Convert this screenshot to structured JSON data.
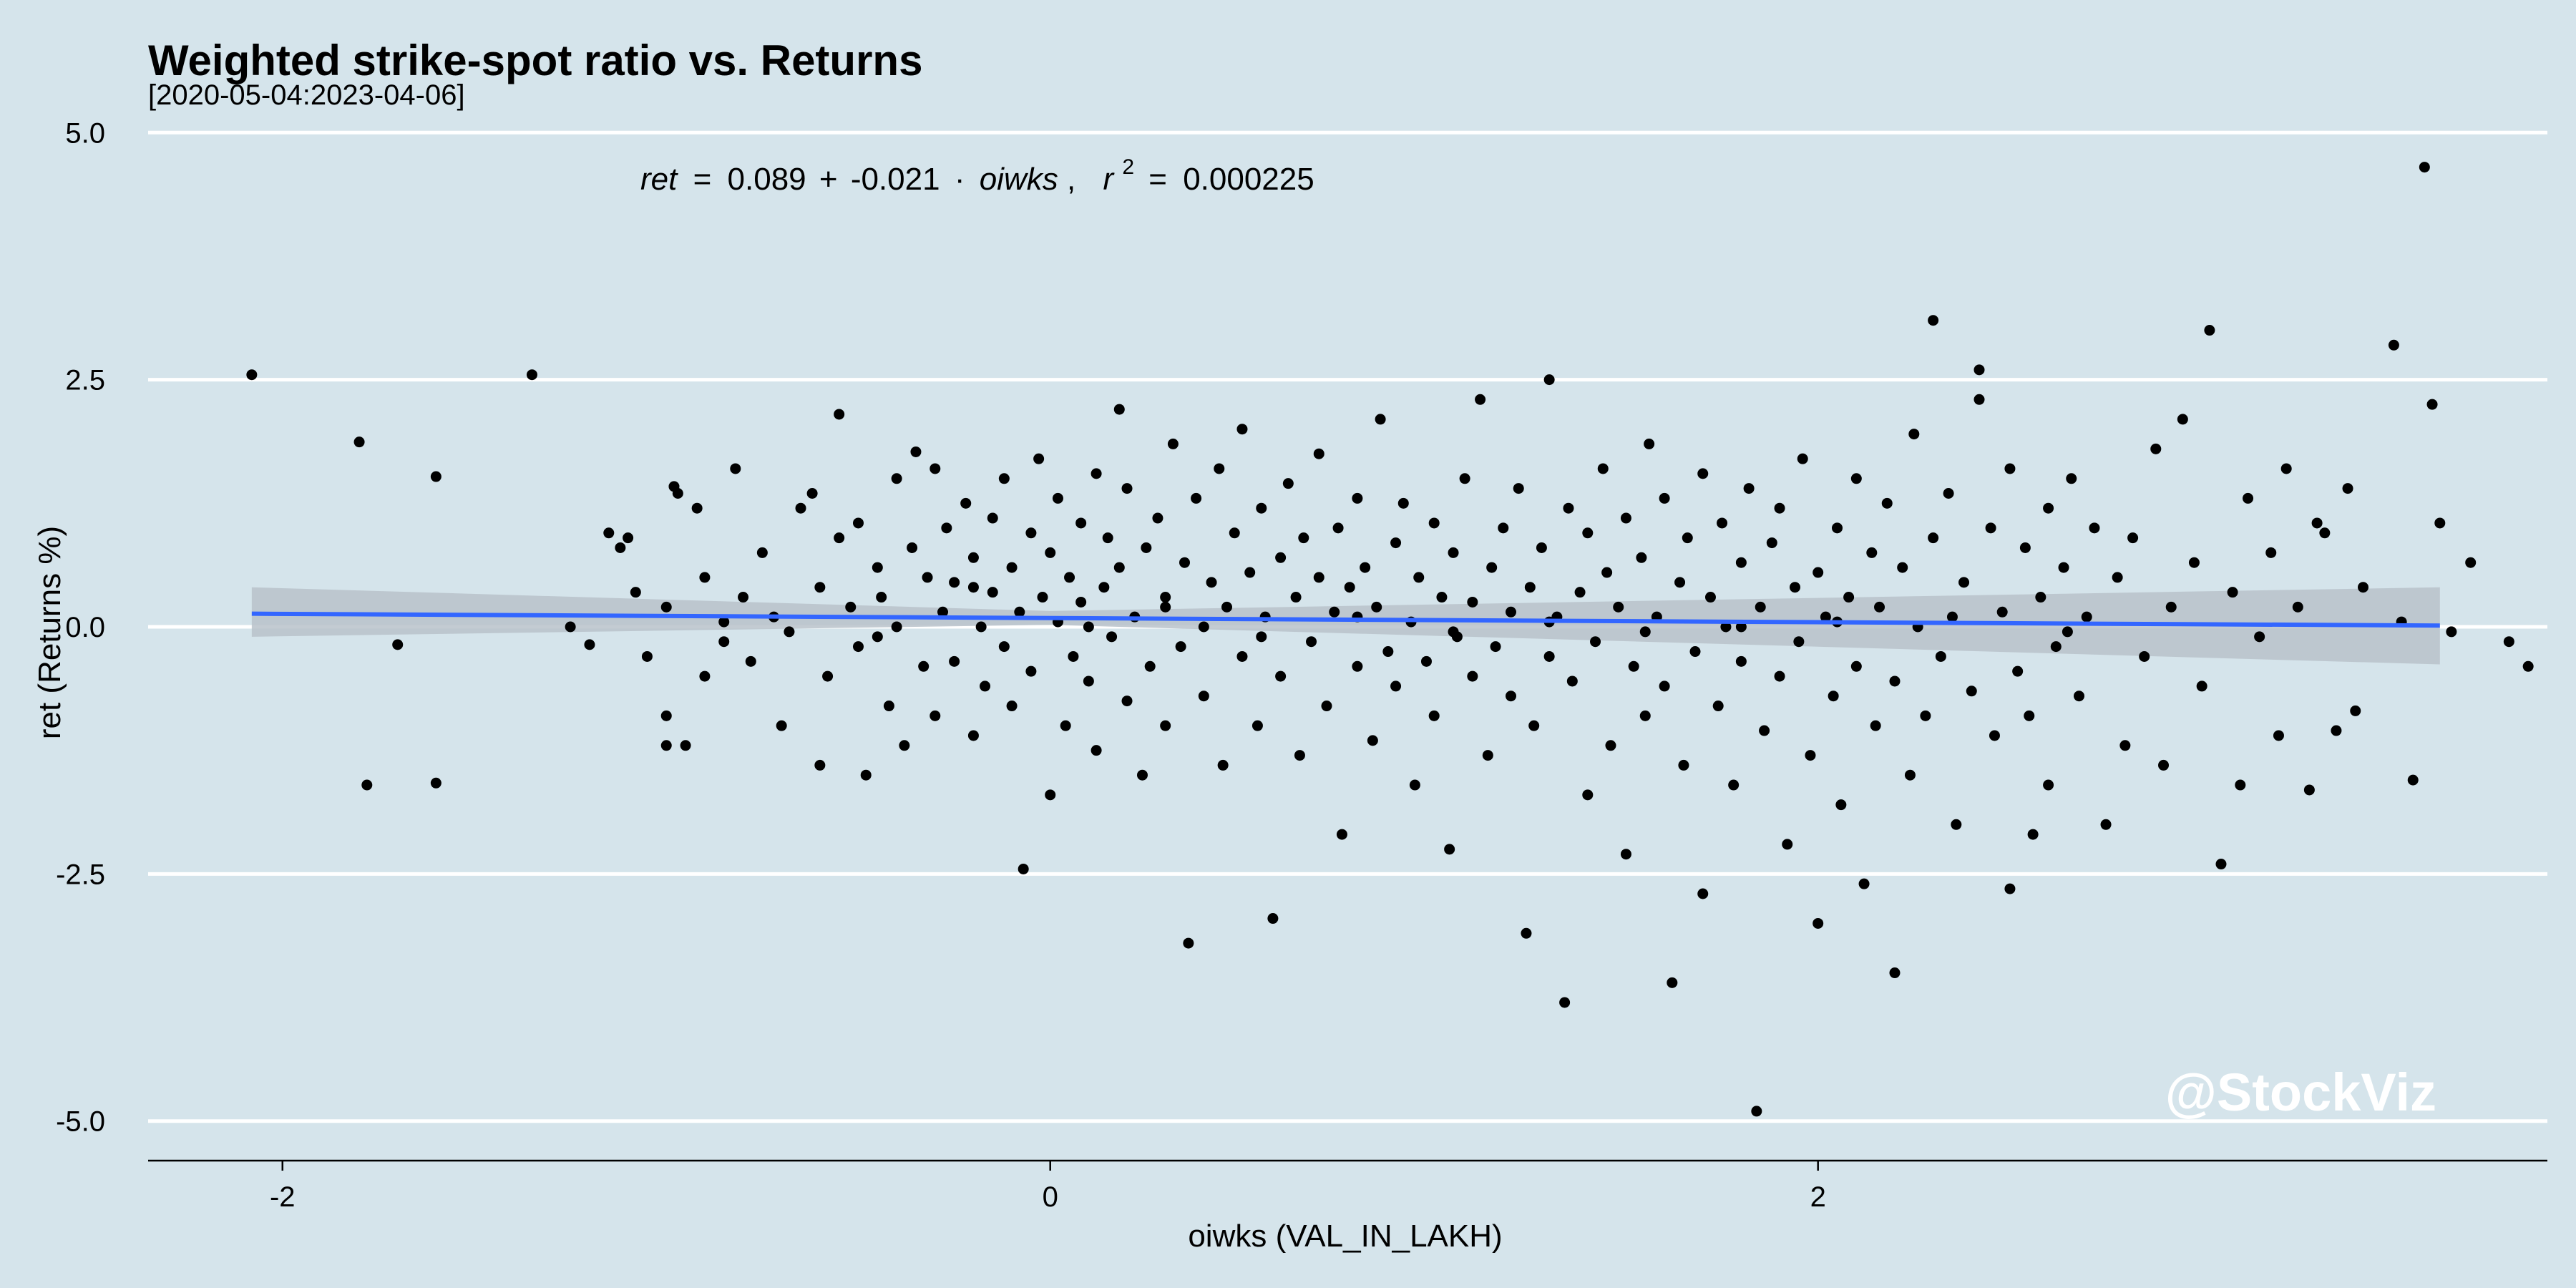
{
  "chart_data": {
    "type": "scatter",
    "title": "Weighted strike-spot ratio vs. Returns",
    "subtitle": "[2020-05-04:2023-04-06]",
    "xlabel": "oiwks (VAL_IN_LAKH)",
    "ylabel": "ret (Returns %)",
    "xlim": [
      -2.35,
      3.9
    ],
    "ylim": [
      -5.4,
      5.4
    ],
    "x_ticks": [
      -2,
      0,
      2
    ],
    "x_tick_labels": [
      "-2",
      "0",
      "2"
    ],
    "y_ticks": [
      5.0,
      2.5,
      0.0,
      -2.5,
      -5.0
    ],
    "y_tick_labels": [
      "5.0",
      "2.5",
      "0.0",
      "-2.5",
      "-5.0"
    ],
    "grid": "horizontal",
    "equation": {
      "lhs": "ret",
      "equals": "=",
      "intercept": "0.089",
      "plus": "+",
      "slope": "-0.021",
      "dot": "·",
      "var": "oiwks",
      "comma": ",",
      "r2_label": "r",
      "r2_exp": "2",
      "r2_equals": "=",
      "r2_value": "0.000225"
    },
    "regression": {
      "intercept": 0.089,
      "slope": -0.021,
      "x_range": [
        -2.08,
        3.62
      ]
    },
    "confidence_band": {
      "x": [
        -2.08,
        0.0,
        3.62
      ],
      "upper": [
        0.4,
        0.16,
        0.4
      ],
      "lower": [
        -0.1,
        0.02,
        -0.38
      ]
    },
    "watermark": "@StockViz",
    "colors": {
      "background": "#d5e4eb",
      "grid": "#ffffff",
      "line": "#3366ff",
      "band": "#b8c2ca",
      "point": "#000000"
    },
    "points": [
      [
        -2.08,
        2.55
      ],
      [
        -1.8,
        1.87
      ],
      [
        -1.7,
        -0.18
      ],
      [
        -1.78,
        -1.6
      ],
      [
        -1.6,
        1.52
      ],
      [
        -1.6,
        -1.58
      ],
      [
        -1.35,
        2.55
      ],
      [
        -1.2,
        -0.18
      ],
      [
        -1.15,
        0.95
      ],
      [
        -1.12,
        0.8
      ],
      [
        -1.1,
        0.9
      ],
      [
        -1.05,
        -0.3
      ],
      [
        -1.0,
        0.2
      ],
      [
        -1.0,
        -1.2
      ],
      [
        -0.95,
        -1.2
      ],
      [
        -1.0,
        -0.9
      ],
      [
        -0.98,
        1.42
      ],
      [
        -0.97,
        1.35
      ],
      [
        -0.92,
        1.2
      ],
      [
        -0.9,
        0.5
      ],
      [
        -0.85,
        0.05
      ],
      [
        -0.85,
        -0.15
      ],
      [
        -0.82,
        1.6
      ],
      [
        -0.8,
        0.3
      ],
      [
        -0.78,
        -0.35
      ],
      [
        -0.75,
        0.75
      ],
      [
        -0.72,
        0.1
      ],
      [
        -0.7,
        -1.0
      ],
      [
        -0.68,
        -0.05
      ],
      [
        -0.65,
        1.2
      ],
      [
        -0.62,
        1.35
      ],
      [
        -0.6,
        0.4
      ],
      [
        -0.58,
        -0.5
      ],
      [
        -0.55,
        2.15
      ],
      [
        -0.55,
        0.9
      ],
      [
        -0.52,
        0.2
      ],
      [
        -0.5,
        -0.2
      ],
      [
        -0.5,
        1.05
      ],
      [
        -0.48,
        -1.5
      ],
      [
        -0.45,
        0.6
      ],
      [
        -0.44,
        0.3
      ],
      [
        -0.42,
        -0.8
      ],
      [
        -0.4,
        1.5
      ],
      [
        -0.4,
        0.0
      ],
      [
        -0.38,
        -1.2
      ],
      [
        -0.36,
        0.8
      ],
      [
        -0.35,
        1.77
      ],
      [
        -0.33,
        -0.4
      ],
      [
        -0.32,
        0.5
      ],
      [
        -0.3,
        1.6
      ],
      [
        -0.3,
        -0.9
      ],
      [
        -0.28,
        0.15
      ],
      [
        -0.27,
        1.0
      ],
      [
        -0.25,
        0.45
      ],
      [
        -0.25,
        -0.35
      ],
      [
        -0.22,
        1.25
      ],
      [
        -0.2,
        -1.1
      ],
      [
        -0.2,
        0.7
      ],
      [
        -0.18,
        0.0
      ],
      [
        -0.17,
        -0.6
      ],
      [
        -0.15,
        1.1
      ],
      [
        -0.15,
        0.35
      ],
      [
        -0.12,
        -0.2
      ],
      [
        -0.12,
        1.5
      ],
      [
        -0.1,
        -0.8
      ],
      [
        -0.1,
        0.6
      ],
      [
        -0.08,
        0.15
      ],
      [
        -0.07,
        -2.45
      ],
      [
        -0.05,
        0.95
      ],
      [
        -0.05,
        -0.45
      ],
      [
        -0.03,
        1.7
      ],
      [
        -0.02,
        0.3
      ],
      [
        0.0,
        -1.7
      ],
      [
        0.0,
        0.75
      ],
      [
        0.02,
        1.3
      ],
      [
        0.02,
        0.05
      ],
      [
        0.04,
        -1.0
      ],
      [
        0.05,
        0.5
      ],
      [
        0.06,
        -0.3
      ],
      [
        0.08,
        1.05
      ],
      [
        0.08,
        0.25
      ],
      [
        0.1,
        -0.55
      ],
      [
        0.12,
        1.55
      ],
      [
        0.12,
        -1.25
      ],
      [
        0.14,
        0.4
      ],
      [
        0.15,
        0.9
      ],
      [
        0.16,
        -0.1
      ],
      [
        0.18,
        2.2
      ],
      [
        0.18,
        0.6
      ],
      [
        0.2,
        -0.75
      ],
      [
        0.2,
        1.4
      ],
      [
        0.22,
        0.1
      ],
      [
        0.24,
        -1.5
      ],
      [
        0.25,
        0.8
      ],
      [
        0.26,
        -0.4
      ],
      [
        0.28,
        1.1
      ],
      [
        0.3,
        0.3
      ],
      [
        0.3,
        -1.0
      ],
      [
        0.32,
        1.85
      ],
      [
        0.34,
        -0.2
      ],
      [
        0.35,
        0.65
      ],
      [
        0.36,
        -3.2
      ],
      [
        0.38,
        1.3
      ],
      [
        0.4,
        0.0
      ],
      [
        0.4,
        -0.7
      ],
      [
        0.42,
        0.45
      ],
      [
        0.44,
        1.6
      ],
      [
        0.45,
        -1.4
      ],
      [
        0.46,
        0.2
      ],
      [
        0.48,
        0.95
      ],
      [
        0.5,
        -0.3
      ],
      [
        0.5,
        2.0
      ],
      [
        0.52,
        0.55
      ],
      [
        0.54,
        -1.0
      ],
      [
        0.55,
        1.2
      ],
      [
        0.56,
        0.1
      ],
      [
        0.58,
        -2.95
      ],
      [
        0.6,
        0.7
      ],
      [
        0.6,
        -0.5
      ],
      [
        0.62,
        1.45
      ],
      [
        0.64,
        0.3
      ],
      [
        0.65,
        -1.3
      ],
      [
        0.66,
        0.9
      ],
      [
        0.68,
        -0.15
      ],
      [
        0.7,
        1.75
      ],
      [
        0.7,
        0.5
      ],
      [
        0.72,
        -0.8
      ],
      [
        0.74,
        0.15
      ],
      [
        0.75,
        1.0
      ],
      [
        0.76,
        -2.1
      ],
      [
        0.78,
        0.4
      ],
      [
        0.8,
        -0.4
      ],
      [
        0.8,
        1.3
      ],
      [
        0.82,
        0.6
      ],
      [
        0.84,
        -1.15
      ],
      [
        0.85,
        0.2
      ],
      [
        0.86,
        2.1
      ],
      [
        0.88,
        -0.25
      ],
      [
        0.9,
        0.85
      ],
      [
        0.9,
        -0.6
      ],
      [
        0.92,
        1.25
      ],
      [
        0.94,
        0.05
      ],
      [
        0.95,
        -1.6
      ],
      [
        0.96,
        0.5
      ],
      [
        0.98,
        -0.35
      ],
      [
        1.0,
        1.05
      ],
      [
        1.0,
        -0.9
      ],
      [
        1.02,
        0.3
      ],
      [
        1.04,
        -2.25
      ],
      [
        1.05,
        0.75
      ],
      [
        1.06,
        -0.1
      ],
      [
        1.08,
        1.5
      ],
      [
        1.1,
        -0.5
      ],
      [
        1.1,
        0.25
      ],
      [
        1.12,
        2.3
      ],
      [
        1.14,
        -1.3
      ],
      [
        1.15,
        0.6
      ],
      [
        1.16,
        -0.2
      ],
      [
        1.18,
        1.0
      ],
      [
        1.2,
        -0.7
      ],
      [
        1.2,
        0.15
      ],
      [
        1.22,
        1.4
      ],
      [
        1.24,
        -3.1
      ],
      [
        1.25,
        0.4
      ],
      [
        1.26,
        -1.0
      ],
      [
        1.28,
        0.8
      ],
      [
        1.3,
        -0.3
      ],
      [
        1.3,
        2.5
      ],
      [
        1.32,
        0.1
      ],
      [
        1.34,
        -3.8
      ],
      [
        1.35,
        1.2
      ],
      [
        1.36,
        -0.55
      ],
      [
        1.38,
        0.35
      ],
      [
        1.4,
        -1.7
      ],
      [
        1.4,
        0.95
      ],
      [
        1.42,
        -0.15
      ],
      [
        1.44,
        1.6
      ],
      [
        1.45,
        0.55
      ],
      [
        1.46,
        -1.2
      ],
      [
        1.48,
        0.2
      ],
      [
        1.5,
        -2.3
      ],
      [
        1.5,
        1.1
      ],
      [
        1.52,
        -0.4
      ],
      [
        1.54,
        0.7
      ],
      [
        1.55,
        -0.9
      ],
      [
        1.56,
        1.85
      ],
      [
        1.58,
        0.1
      ],
      [
        1.6,
        -0.6
      ],
      [
        1.6,
        1.3
      ],
      [
        1.62,
        -3.6
      ],
      [
        1.64,
        0.45
      ],
      [
        1.65,
        -1.4
      ],
      [
        1.66,
        0.9
      ],
      [
        1.68,
        -0.25
      ],
      [
        1.7,
        1.55
      ],
      [
        1.7,
        -2.7
      ],
      [
        1.72,
        0.3
      ],
      [
        1.74,
        -0.8
      ],
      [
        1.75,
        1.05
      ],
      [
        1.76,
        0.0
      ],
      [
        1.78,
        -1.6
      ],
      [
        1.8,
        0.65
      ],
      [
        1.8,
        -0.35
      ],
      [
        1.82,
        1.4
      ],
      [
        1.84,
        -4.9
      ],
      [
        1.85,
        0.2
      ],
      [
        1.86,
        -1.05
      ],
      [
        1.88,
        0.85
      ],
      [
        1.9,
        -0.5
      ],
      [
        1.9,
        1.2
      ],
      [
        1.92,
        -2.2
      ],
      [
        1.94,
        0.4
      ],
      [
        1.95,
        -0.15
      ],
      [
        1.96,
        1.7
      ],
      [
        1.98,
        -1.3
      ],
      [
        2.0,
        0.55
      ],
      [
        2.0,
        -3.0
      ],
      [
        2.02,
        0.1
      ],
      [
        2.04,
        -0.7
      ],
      [
        2.05,
        1.0
      ],
      [
        2.06,
        -1.8
      ],
      [
        2.08,
        0.3
      ],
      [
        2.1,
        -0.4
      ],
      [
        2.1,
        1.5
      ],
      [
        2.12,
        -2.6
      ],
      [
        2.14,
        0.75
      ],
      [
        2.15,
        -1.0
      ],
      [
        2.16,
        0.2
      ],
      [
        2.18,
        1.25
      ],
      [
        2.2,
        -0.55
      ],
      [
        2.2,
        -3.5
      ],
      [
        2.22,
        0.6
      ],
      [
        2.24,
        -1.5
      ],
      [
        2.25,
        1.95
      ],
      [
        2.26,
        0.0
      ],
      [
        2.28,
        -0.9
      ],
      [
        2.3,
        0.9
      ],
      [
        2.3,
        3.1
      ],
      [
        2.32,
        -0.3
      ],
      [
        2.34,
        1.35
      ],
      [
        2.36,
        -2.0
      ],
      [
        2.38,
        0.45
      ],
      [
        2.4,
        -0.65
      ],
      [
        2.42,
        2.6
      ],
      [
        2.42,
        2.3
      ],
      [
        2.45,
        1.0
      ],
      [
        2.46,
        -1.1
      ],
      [
        2.48,
        0.15
      ],
      [
        2.5,
        -2.65
      ],
      [
        2.5,
        1.6
      ],
      [
        2.52,
        -0.45
      ],
      [
        2.54,
        0.8
      ],
      [
        2.55,
        -0.9
      ],
      [
        2.56,
        -2.1
      ],
      [
        2.58,
        0.3
      ],
      [
        2.6,
        1.2
      ],
      [
        2.6,
        -1.6
      ],
      [
        2.62,
        -0.2
      ],
      [
        2.64,
        0.6
      ],
      [
        2.66,
        1.5
      ],
      [
        2.68,
        -0.7
      ],
      [
        2.7,
        0.1
      ],
      [
        2.72,
        1.0
      ],
      [
        2.75,
        -2.0
      ],
      [
        2.78,
        0.5
      ],
      [
        2.8,
        -1.2
      ],
      [
        2.82,
        0.9
      ],
      [
        2.85,
        -0.3
      ],
      [
        2.88,
        1.8
      ],
      [
        2.9,
        -1.4
      ],
      [
        2.92,
        0.2
      ],
      [
        2.95,
        2.1
      ],
      [
        2.98,
        0.65
      ],
      [
        3.0,
        -0.6
      ],
      [
        3.02,
        3.0
      ],
      [
        3.05,
        -2.4
      ],
      [
        3.08,
        0.35
      ],
      [
        3.1,
        -1.6
      ],
      [
        3.12,
        1.3
      ],
      [
        3.15,
        -0.1
      ],
      [
        3.18,
        0.75
      ],
      [
        3.2,
        -1.1
      ],
      [
        3.22,
        1.6
      ],
      [
        3.25,
        0.2
      ],
      [
        3.28,
        -1.65
      ],
      [
        3.3,
        1.05
      ],
      [
        3.32,
        0.95
      ],
      [
        3.35,
        -1.05
      ],
      [
        3.38,
        1.4
      ],
      [
        3.4,
        -0.85
      ],
      [
        3.42,
        0.4
      ],
      [
        3.5,
        2.85
      ],
      [
        3.52,
        0.05
      ],
      [
        3.55,
        -1.55
      ],
      [
        3.58,
        4.65
      ],
      [
        3.6,
        2.25
      ],
      [
        3.62,
        1.05
      ],
      [
        3.65,
        -0.05
      ],
      [
        3.7,
        0.65
      ],
      [
        3.8,
        -0.15
      ],
      [
        3.85,
        -0.4
      ],
      [
        -1.25,
        0.0
      ],
      [
        -1.08,
        0.35
      ],
      [
        -0.9,
        -0.5
      ],
      [
        -0.6,
        -1.4
      ],
      [
        -0.45,
        -0.1
      ],
      [
        -0.2,
        0.4
      ],
      [
        0.1,
        0.0
      ],
      [
        0.3,
        0.2
      ],
      [
        0.55,
        -0.1
      ],
      [
        0.8,
        0.1
      ],
      [
        1.05,
        -0.05
      ],
      [
        1.3,
        0.05
      ],
      [
        1.55,
        -0.05
      ],
      [
        1.8,
        0.0
      ],
      [
        2.05,
        0.05
      ],
      [
        2.35,
        0.1
      ],
      [
        2.65,
        -0.05
      ]
    ]
  }
}
